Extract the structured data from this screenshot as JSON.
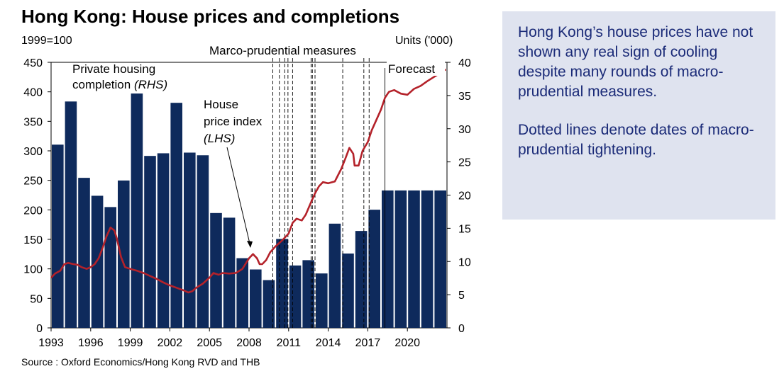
{
  "title": "Hong Kong: House prices and completions",
  "left_unit": "1999=100",
  "right_unit": "Units ('000)",
  "source": "Source : Oxford Economics/Hong Kong RVD and THB",
  "note": {
    "paragraph1": "Hong Kong’s house prices have not shown any real sign of cooling despite many rounds of macro-prudential measures.",
    "paragraph2": "Dotted lines denote dates of macro-prudential tightening."
  },
  "colors": {
    "bar": "#0e2a5c",
    "line": "#b4222a",
    "note_bg": "#dfe3ef",
    "note_text": "#1b2b78"
  },
  "chart_data": {
    "type": "bar+line",
    "title": "Hong Kong: House prices and completions",
    "left_axis": {
      "label": "1999=100",
      "range": [
        0,
        450
      ],
      "ticks": [
        0,
        50,
        100,
        150,
        200,
        250,
        300,
        350,
        400,
        450
      ]
    },
    "right_axis": {
      "label": "Units ('000)",
      "range": [
        0,
        40
      ],
      "ticks": [
        0,
        5,
        10,
        15,
        20,
        25,
        30,
        35,
        40
      ]
    },
    "x_range": [
      1993,
      2023
    ],
    "x_ticks": [
      "1993",
      "1996",
      "1999",
      "2002",
      "2005",
      "2008",
      "2011",
      "2014",
      "2017",
      "2020"
    ],
    "bars": {
      "name": "Private housing completion (RHS)",
      "axis": "right",
      "years": [
        1993,
        1994,
        1995,
        1996,
        1997,
        1998,
        1999,
        2000,
        2001,
        2002,
        2003,
        2004,
        2005,
        2006,
        2007,
        2008,
        2009,
        2010,
        2011,
        2012,
        2013,
        2014,
        2015,
        2016,
        2017,
        2018,
        2019,
        2020,
        2021,
        2022
      ],
      "values": [
        27.6,
        34.1,
        22.6,
        19.9,
        18.2,
        22.2,
        35.3,
        25.9,
        26.3,
        33.9,
        26.4,
        26.0,
        17.3,
        16.6,
        10.5,
        8.8,
        7.2,
        13.4,
        9.4,
        10.2,
        8.2,
        15.7,
        11.2,
        14.6,
        17.8,
        20.7,
        20.7,
        20.7,
        20.7,
        20.7
      ]
    },
    "line": {
      "name": "House price index (LHS)",
      "axis": "left",
      "points": [
        [
          1993.0,
          85
        ],
        [
          1993.3,
          92
        ],
        [
          1993.7,
          97
        ],
        [
          1994.0,
          108
        ],
        [
          1994.3,
          110
        ],
        [
          1994.7,
          108
        ],
        [
          1995.0,
          107
        ],
        [
          1995.3,
          103
        ],
        [
          1995.7,
          100
        ],
        [
          1996.0,
          103
        ],
        [
          1996.3,
          108
        ],
        [
          1996.6,
          118
        ],
        [
          1996.9,
          135
        ],
        [
          1997.2,
          155
        ],
        [
          1997.5,
          170
        ],
        [
          1997.8,
          165
        ],
        [
          1998.0,
          150
        ],
        [
          1998.3,
          120
        ],
        [
          1998.6,
          103
        ],
        [
          1999.0,
          100
        ],
        [
          1999.5,
          97
        ],
        [
          2000.0,
          93
        ],
        [
          2000.5,
          88
        ],
        [
          2001.0,
          83
        ],
        [
          2001.5,
          77
        ],
        [
          2002.0,
          72
        ],
        [
          2002.5,
          68
        ],
        [
          2003.0,
          64
        ],
        [
          2003.4,
          60
        ],
        [
          2003.7,
          62
        ],
        [
          2004.0,
          68
        ],
        [
          2004.5,
          75
        ],
        [
          2005.0,
          85
        ],
        [
          2005.3,
          93
        ],
        [
          2005.7,
          90
        ],
        [
          2006.0,
          93
        ],
        [
          2006.5,
          92
        ],
        [
          2007.0,
          93
        ],
        [
          2007.5,
          100
        ],
        [
          2008.0,
          118
        ],
        [
          2008.3,
          125
        ],
        [
          2008.6,
          118
        ],
        [
          2008.8,
          108
        ],
        [
          2009.0,
          108
        ],
        [
          2009.3,
          115
        ],
        [
          2009.6,
          128
        ],
        [
          2010.0,
          138
        ],
        [
          2010.5,
          148
        ],
        [
          2011.0,
          160
        ],
        [
          2011.3,
          178
        ],
        [
          2011.6,
          185
        ],
        [
          2012.0,
          182
        ],
        [
          2012.3,
          192
        ],
        [
          2012.6,
          208
        ],
        [
          2013.0,
          228
        ],
        [
          2013.3,
          240
        ],
        [
          2013.6,
          247
        ],
        [
          2014.0,
          245
        ],
        [
          2014.5,
          248
        ],
        [
          2015.0,
          270
        ],
        [
          2015.3,
          287
        ],
        [
          2015.6,
          305
        ],
        [
          2015.9,
          295
        ],
        [
          2016.0,
          275
        ],
        [
          2016.3,
          275
        ],
        [
          2016.6,
          300
        ],
        [
          2017.0,
          315
        ],
        [
          2017.3,
          335
        ],
        [
          2017.6,
          350
        ],
        [
          2018.0,
          370
        ],
        [
          2018.3,
          390
        ],
        [
          2018.6,
          400
        ],
        [
          2019.0,
          403
        ],
        [
          2019.5,
          397
        ],
        [
          2020.0,
          395
        ],
        [
          2020.5,
          405
        ],
        [
          2021.0,
          410
        ],
        [
          2021.5,
          418
        ],
        [
          2022.0,
          425
        ],
        [
          2022.5,
          432
        ],
        [
          2022.9,
          438
        ]
      ]
    },
    "measures": {
      "label": "Marco-prudential measures",
      "years": [
        2009.8,
        2010.3,
        2010.7,
        2010.95,
        2011.3,
        2012.7,
        2012.8,
        2013.0,
        2015.1,
        2016.7,
        2017.1
      ]
    },
    "forecast": {
      "label": "Forecast",
      "start_year": 2018.3
    },
    "annotations": {
      "bars_label_line1": "Private housing",
      "bars_label_line2": "completion ",
      "bars_label_line2_italic": "(RHS)",
      "line_label_line1": "House",
      "line_label_line2": "price index",
      "line_label_line3": "(LHS)"
    }
  }
}
